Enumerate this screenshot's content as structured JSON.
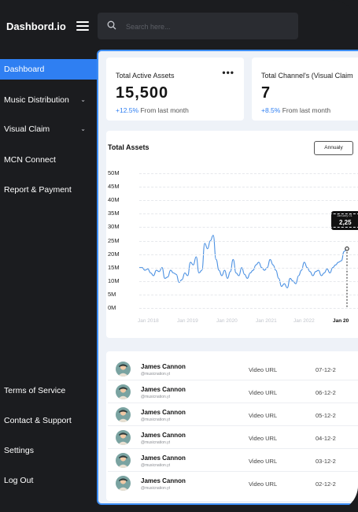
{
  "brand": "Dashbord.io",
  "search": {
    "placeholder": "Search here..."
  },
  "nav": {
    "items": [
      {
        "label": "Dashboard",
        "active": true
      },
      {
        "label": "Music Distribution",
        "has_chevron": true
      },
      {
        "label": "Visual Claim",
        "has_chevron": true
      },
      {
        "label": "MCN Connect"
      },
      {
        "label": "Report & Payment"
      }
    ],
    "bottom": [
      {
        "label": "Terms of Service"
      },
      {
        "label": "Contact & Support"
      },
      {
        "label": "Settings"
      },
      {
        "label": "Log Out"
      }
    ],
    "chevron_glyph": "⌄"
  },
  "stats": [
    {
      "title": "Total Active Assets",
      "value": "15,500",
      "delta": "+12.5%",
      "delta_text": " From last month",
      "more": "•••"
    },
    {
      "title": "Total Channel's (Visual Claim",
      "value": "7",
      "delta": "+8.5%",
      "delta_text": " From last month"
    }
  ],
  "chart": {
    "title": "Total Assets",
    "period_button": "Annualy",
    "tooltip": {
      "date": "January 01",
      "value": "2,25"
    }
  },
  "chart_data": {
    "type": "line",
    "title": "Total Assets",
    "y_ticks": [
      "50M",
      "45M",
      "40M",
      "35M",
      "30M",
      "25M",
      "20M",
      "15M",
      "10M",
      "5M",
      "0M"
    ],
    "y_values": [
      50,
      45,
      40,
      35,
      30,
      25,
      20,
      15,
      10,
      5,
      0
    ],
    "ylim": [
      0,
      50
    ],
    "x_ticks": [
      "Jan 2018",
      "Jan 2019",
      "Jan 2020",
      "Jan 2021",
      "Jan 2022",
      "Jan 20"
    ],
    "x_highlighted": "Jan 20",
    "grid": true,
    "series": [
      {
        "values": [
          15,
          15,
          14,
          14.5,
          13,
          12,
          14,
          13.5,
          15,
          11,
          11.5,
          14,
          13,
          12.5,
          9.5,
          10.5,
          13,
          12,
          17,
          16,
          19,
          13,
          14,
          24,
          22,
          25,
          27,
          18,
          14,
          12,
          14,
          11,
          13.5,
          18,
          13,
          12,
          15,
          12.5,
          11,
          13,
          14,
          16,
          17,
          15,
          14,
          15,
          18,
          16,
          14,
          11,
          8,
          9,
          7.5,
          11,
          10,
          9,
          12,
          14,
          17,
          15,
          13.5,
          12,
          13.5,
          14,
          12,
          13,
          14.5,
          13,
          15,
          16,
          17,
          17.5,
          21,
          22
        ]
      }
    ]
  },
  "table": {
    "rows": [
      {
        "name": "James Cannon",
        "handle": "@musicnation.yt",
        "url": "Video URL",
        "date": "07-12-2"
      },
      {
        "name": "James Cannon",
        "handle": "@musicnation.yt",
        "url": "Video URL",
        "date": "06-12-2"
      },
      {
        "name": "James Cannon",
        "handle": "@musicnation.yt",
        "url": "Video URL",
        "date": "05-12-2"
      },
      {
        "name": "James Cannon",
        "handle": "@musicnation.yt",
        "url": "Video URL",
        "date": "04-12-2"
      },
      {
        "name": "James Cannon",
        "handle": "@musicnation.yt",
        "url": "Video URL",
        "date": "03-12-2"
      },
      {
        "name": "James Cannon",
        "handle": "@musicnation.yt",
        "url": "Video URL",
        "date": "02-12-2"
      }
    ]
  },
  "colors": {
    "accent": "#2f7ff2",
    "sidebar": "#1b1c1f",
    "panel": "#eef2f8",
    "line": "#4a90e2"
  }
}
